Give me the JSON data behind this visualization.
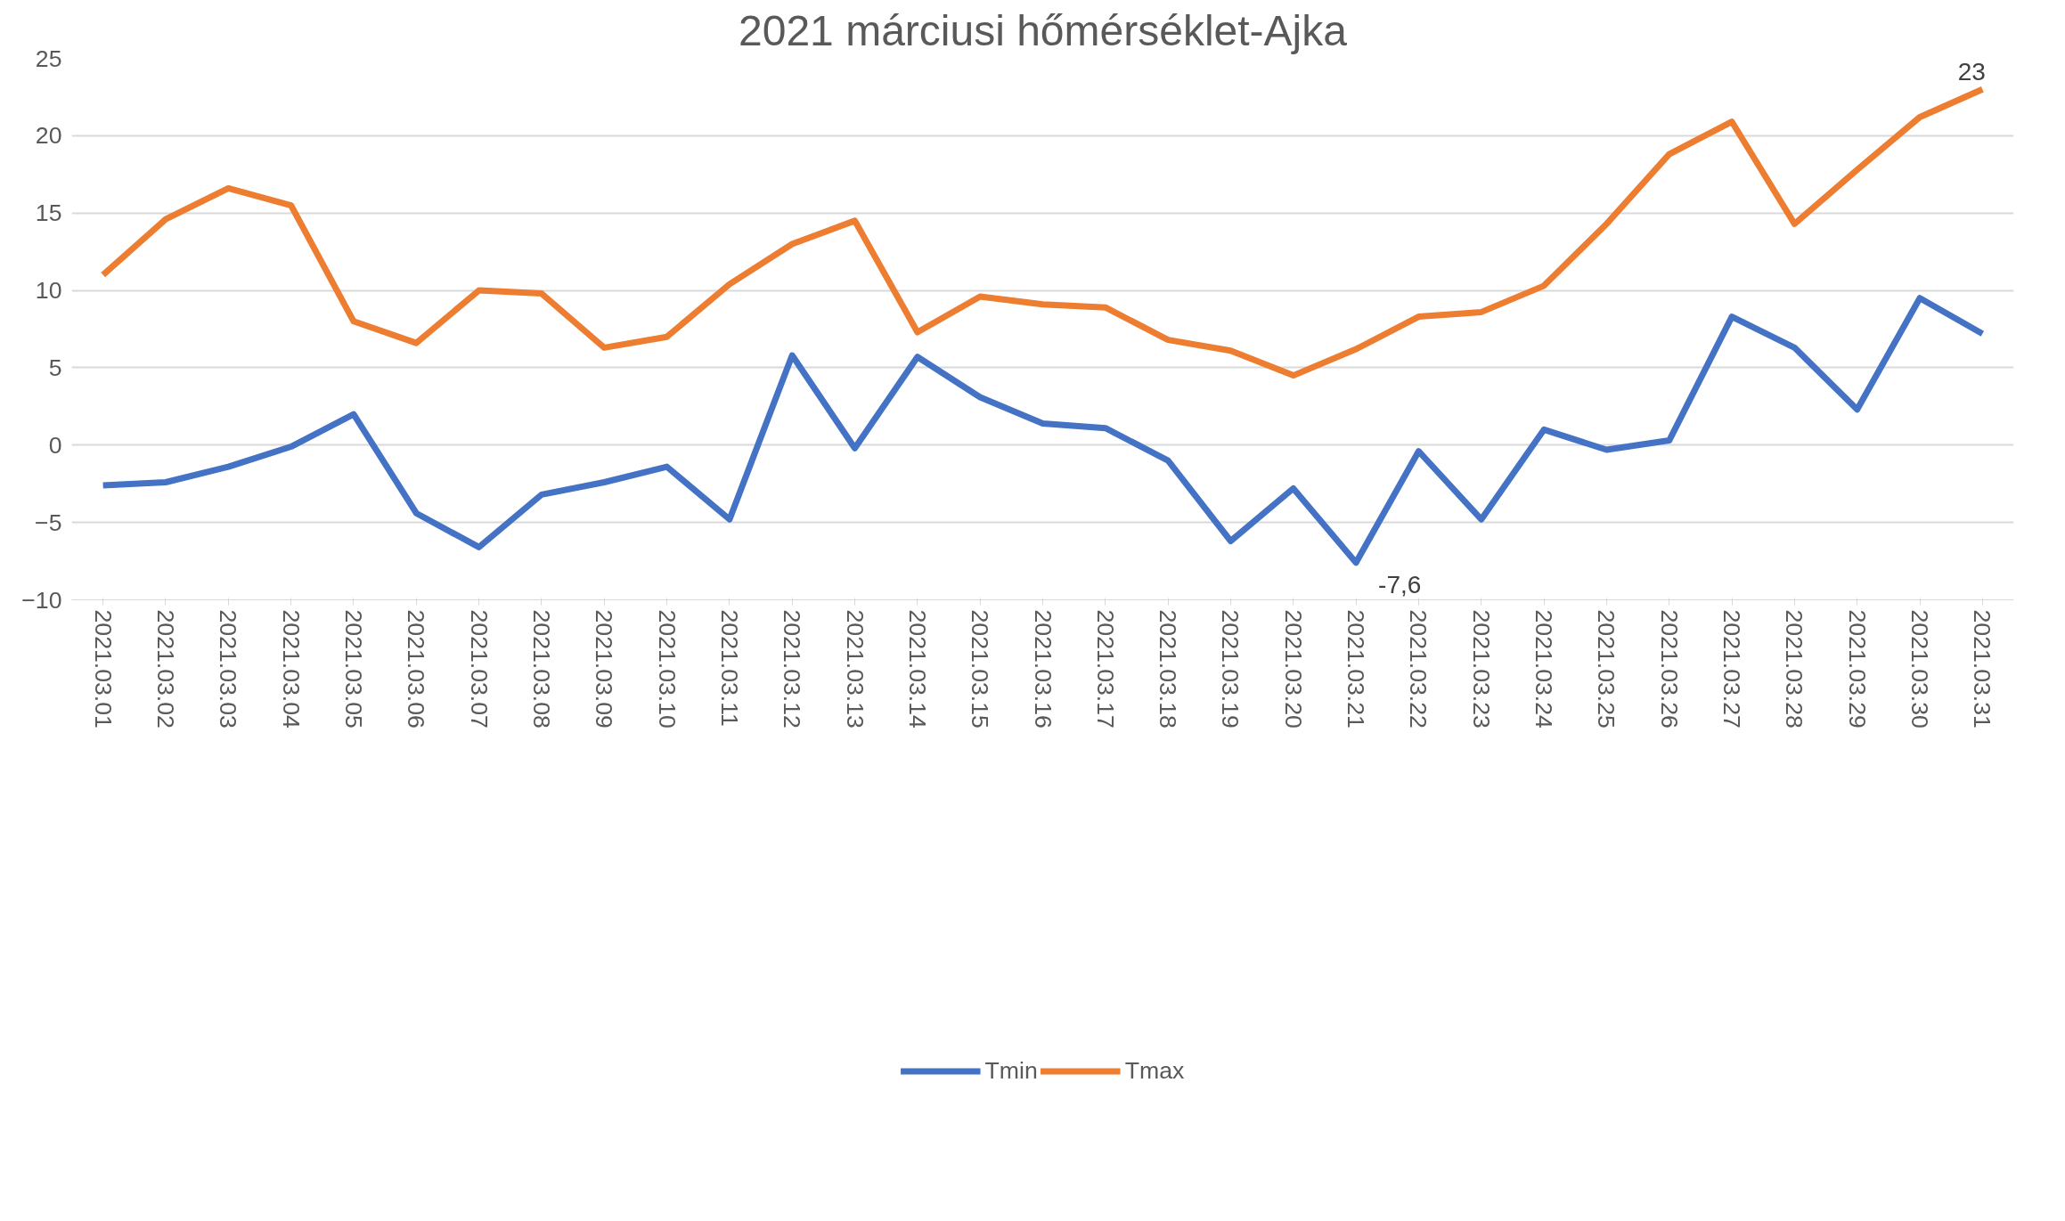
{
  "chart_data": {
    "type": "line",
    "title": "2021 márciusi hőmérséklet-Ajka",
    "categories": [
      "2021.03.01",
      "2021.03.02",
      "2021.03.03",
      "2021.03.04",
      "2021.03.05",
      "2021.03.06",
      "2021.03.07",
      "2021.03.08",
      "2021.03.09",
      "2021.03.10",
      "2021.03.11",
      "2021.03.12",
      "2021.03.13",
      "2021.03.14",
      "2021.03.15",
      "2021.03.16",
      "2021.03.17",
      "2021.03.18",
      "2021.03.19",
      "2021.03.20",
      "2021.03.21",
      "2021.03.22",
      "2021.03.23",
      "2021.03.24",
      "2021.03.25",
      "2021.03.26",
      "2021.03.27",
      "2021.03.28",
      "2021.03.29",
      "2021.03.30",
      "2021.03.31"
    ],
    "series": [
      {
        "name": "Tmin",
        "color": "#4472c4",
        "values": [
          -2.6,
          -2.4,
          -1.4,
          -0.1,
          2.0,
          -4.4,
          -6.6,
          -3.2,
          -2.4,
          -1.4,
          -4.8,
          5.8,
          -0.2,
          5.7,
          3.1,
          1.4,
          1.1,
          -1.0,
          -6.2,
          -2.8,
          -7.6,
          -0.4,
          -4.8,
          1.0,
          -0.3,
          0.3,
          8.3,
          6.3,
          2.3,
          9.5,
          7.2
        ],
        "value_labels": [
          null,
          null,
          null,
          null,
          null,
          null,
          null,
          null,
          null,
          null,
          null,
          null,
          null,
          null,
          null,
          null,
          null,
          null,
          null,
          null,
          "-7,6",
          null,
          null,
          null,
          null,
          null,
          null,
          null,
          null,
          null,
          null
        ]
      },
      {
        "name": "Tmax",
        "color": "#ed7d31",
        "values": [
          11.0,
          14.6,
          16.6,
          15.5,
          8.0,
          6.6,
          10.0,
          9.8,
          6.3,
          7.0,
          10.4,
          13.0,
          14.5,
          7.3,
          9.6,
          9.1,
          8.9,
          6.8,
          6.1,
          4.5,
          6.2,
          8.3,
          8.6,
          10.3,
          14.3,
          18.8,
          20.9,
          14.3,
          17.8,
          21.2,
          23.0
        ],
        "value_labels": [
          null,
          null,
          null,
          null,
          null,
          null,
          null,
          null,
          null,
          null,
          null,
          null,
          null,
          null,
          null,
          null,
          null,
          null,
          null,
          null,
          null,
          null,
          null,
          null,
          null,
          null,
          null,
          null,
          null,
          null,
          "23"
        ]
      }
    ],
    "ylim": [
      -10,
      25
    ],
    "yticks": [
      -10,
      -5,
      0,
      5,
      10,
      15,
      20,
      25
    ],
    "grid": "y",
    "legend": "bottom",
    "marker": "none",
    "line_style": "solid"
  }
}
